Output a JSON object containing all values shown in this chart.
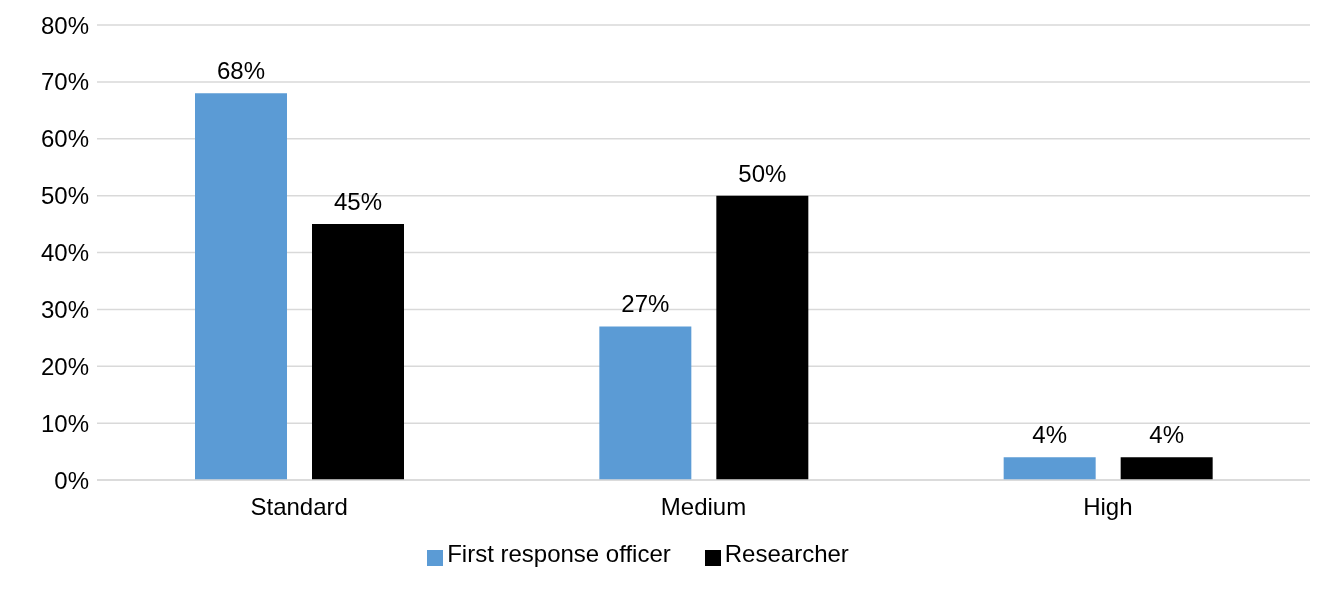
{
  "chart_data": {
    "type": "bar",
    "categories": [
      "Standard",
      "Medium",
      "High"
    ],
    "series": [
      {
        "name": "First response officer",
        "color": "#5b9bd5",
        "values": [
          68,
          27,
          4
        ],
        "value_labels": [
          "68%",
          "27%",
          "4%"
        ]
      },
      {
        "name": "Researcher",
        "color": "#000000",
        "values": [
          45,
          50,
          4
        ],
        "value_labels": [
          "45%",
          "50%",
          "4%"
        ]
      }
    ],
    "ylim": [
      0,
      80
    ],
    "yticks": [
      {
        "value": 0,
        "label": "0%"
      },
      {
        "value": 10,
        "label": "10%"
      },
      {
        "value": 20,
        "label": "20%"
      },
      {
        "value": 30,
        "label": "30%"
      },
      {
        "value": 40,
        "label": "40%"
      },
      {
        "value": 50,
        "label": "50%"
      },
      {
        "value": 60,
        "label": "60%"
      },
      {
        "value": 70,
        "label": "70%"
      },
      {
        "value": 80,
        "label": "80%"
      }
    ],
    "grid": "y",
    "legend": "bottom"
  }
}
